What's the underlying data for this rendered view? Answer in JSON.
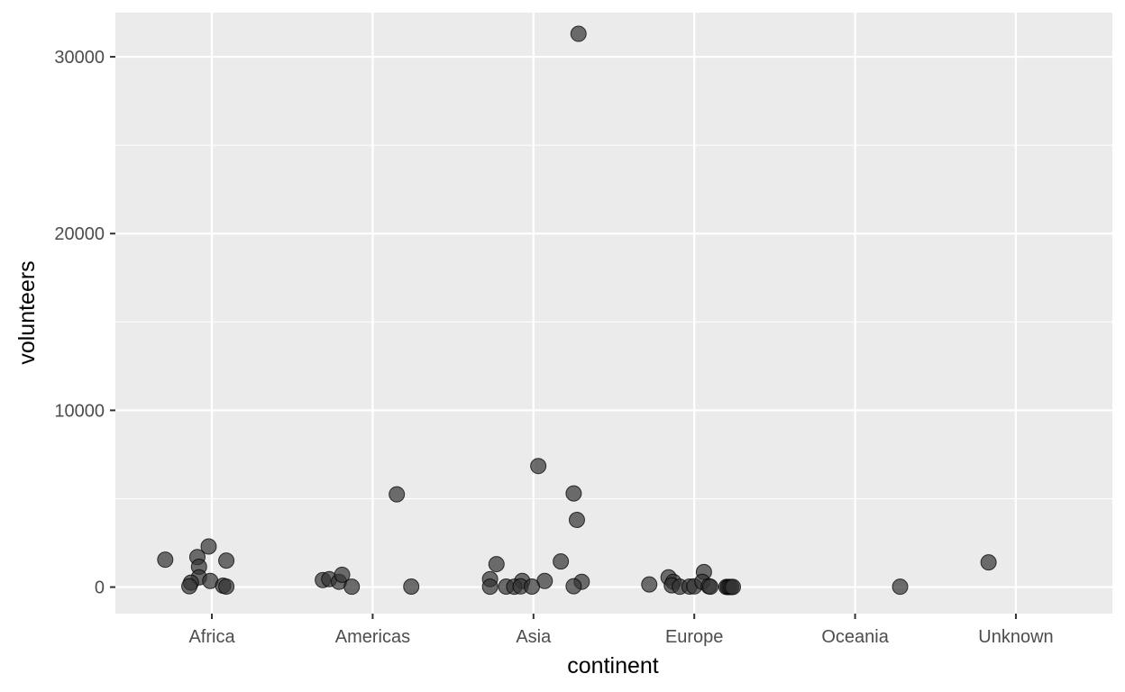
{
  "chart_data": {
    "type": "scatter",
    "title": "",
    "xlabel": "continent",
    "ylabel": "volunteers",
    "categories": [
      "Africa",
      "Americas",
      "Asia",
      "Europe",
      "Oceania",
      "Unknown"
    ],
    "ylim": [
      -1500,
      32500
    ],
    "yticks": [
      0,
      10000,
      20000,
      30000
    ],
    "grid": true,
    "point_color": "#333333",
    "point_opacity": 0.7,
    "panel_background": "#ebebeb",
    "grid_color": "#ffffff",
    "points": [
      {
        "category": "Africa",
        "x": 0.71,
        "y": 1550
      },
      {
        "category": "Africa",
        "x": 0.98,
        "y": 2300
      },
      {
        "category": "Africa",
        "x": 0.91,
        "y": 1700
      },
      {
        "category": "Africa",
        "x": 0.92,
        "y": 1150
      },
      {
        "category": "Africa",
        "x": 1.09,
        "y": 1500
      },
      {
        "category": "Africa",
        "x": 0.92,
        "y": 550
      },
      {
        "category": "Africa",
        "x": 0.87,
        "y": 250
      },
      {
        "category": "Africa",
        "x": 0.86,
        "y": 50
      },
      {
        "category": "Africa",
        "x": 0.99,
        "y": 350
      },
      {
        "category": "Africa",
        "x": 1.07,
        "y": 80
      },
      {
        "category": "Africa",
        "x": 1.09,
        "y": 30
      },
      {
        "category": "Americas",
        "x": 1.69,
        "y": 400
      },
      {
        "category": "Americas",
        "x": 1.73,
        "y": 450
      },
      {
        "category": "Americas",
        "x": 1.79,
        "y": 300
      },
      {
        "category": "Americas",
        "x": 1.81,
        "y": 700
      },
      {
        "category": "Americas",
        "x": 1.87,
        "y": 20
      },
      {
        "category": "Americas",
        "x": 2.15,
        "y": 5250
      },
      {
        "category": "Americas",
        "x": 2.24,
        "y": 30
      },
      {
        "category": "Asia",
        "x": 3.28,
        "y": 31300
      },
      {
        "category": "Asia",
        "x": 3.03,
        "y": 6850
      },
      {
        "category": "Asia",
        "x": 3.25,
        "y": 5300
      },
      {
        "category": "Asia",
        "x": 3.27,
        "y": 3800
      },
      {
        "category": "Asia",
        "x": 3.17,
        "y": 1450
      },
      {
        "category": "Asia",
        "x": 2.77,
        "y": 1300
      },
      {
        "category": "Asia",
        "x": 2.73,
        "y": 450
      },
      {
        "category": "Asia",
        "x": 2.93,
        "y": 350
      },
      {
        "category": "Asia",
        "x": 3.07,
        "y": 350
      },
      {
        "category": "Asia",
        "x": 3.3,
        "y": 300
      },
      {
        "category": "Asia",
        "x": 3.25,
        "y": 50
      },
      {
        "category": "Asia",
        "x": 2.73,
        "y": 20
      },
      {
        "category": "Asia",
        "x": 2.83,
        "y": 30
      },
      {
        "category": "Asia",
        "x": 2.88,
        "y": 20
      },
      {
        "category": "Asia",
        "x": 2.92,
        "y": 40
      },
      {
        "category": "Asia",
        "x": 2.99,
        "y": 30
      },
      {
        "category": "Europe",
        "x": 3.72,
        "y": 150
      },
      {
        "category": "Europe",
        "x": 3.84,
        "y": 550
      },
      {
        "category": "Europe",
        "x": 3.87,
        "y": 300
      },
      {
        "category": "Europe",
        "x": 3.86,
        "y": 100
      },
      {
        "category": "Europe",
        "x": 3.91,
        "y": 20
      },
      {
        "category": "Europe",
        "x": 3.97,
        "y": 30
      },
      {
        "category": "Europe",
        "x": 4.0,
        "y": 40
      },
      {
        "category": "Europe",
        "x": 4.06,
        "y": 850
      },
      {
        "category": "Europe",
        "x": 4.05,
        "y": 300
      },
      {
        "category": "Europe",
        "x": 4.09,
        "y": 50
      },
      {
        "category": "Europe",
        "x": 4.1,
        "y": 20
      },
      {
        "category": "Europe",
        "x": 4.2,
        "y": 10
      },
      {
        "category": "Europe",
        "x": 4.21,
        "y": 5
      },
      {
        "category": "Europe",
        "x": 4.22,
        "y": 10
      },
      {
        "category": "Europe",
        "x": 4.23,
        "y": 5
      },
      {
        "category": "Europe",
        "x": 4.24,
        "y": 8
      },
      {
        "category": "Oceania",
        "x": 5.28,
        "y": 20
      },
      {
        "category": "Unknown",
        "x": 5.83,
        "y": 1400
      }
    ]
  }
}
